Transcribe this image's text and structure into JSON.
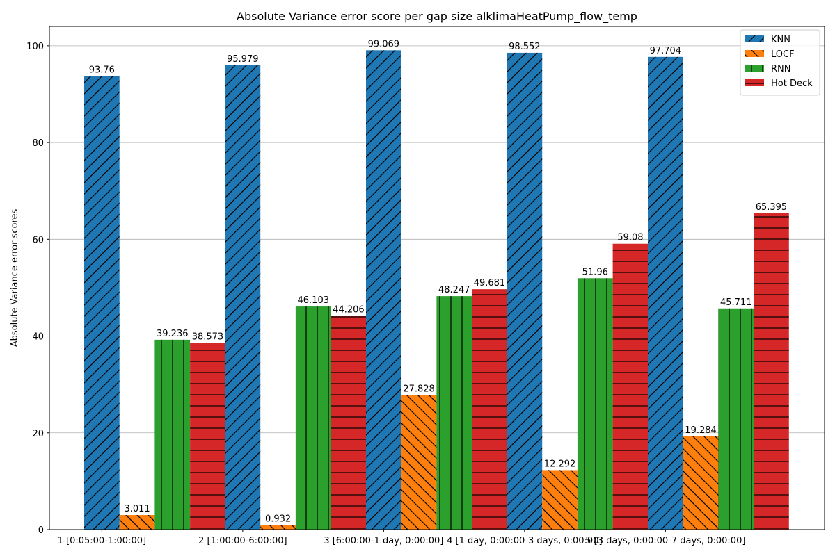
{
  "chart_data": {
    "type": "bar",
    "title": "Absolute Variance error score per gap size alklimaHeatPump_flow_temp",
    "xlabel": "",
    "ylabel": "Absolute Variance error scores",
    "ylim": [
      0,
      104
    ],
    "yticks": [
      0,
      20,
      40,
      60,
      80,
      100
    ],
    "grid": "horizontal",
    "legend_position": "top-right",
    "categories": [
      "1 [0:05:00-1:00:00]",
      "2 [1:00:00-6:00:00]",
      "3 [6:00:00-1 day, 0:00:00]",
      "4 [1 day, 0:00:00-3 days, 0:00:00]",
      "5 [3 days, 0:00:00-7 days, 0:00:00]"
    ],
    "series": [
      {
        "name": "KNN",
        "color": "#1f77b4",
        "hatch": "forward-diagonal",
        "values": [
          93.76,
          95.979,
          99.069,
          98.552,
          97.704
        ]
      },
      {
        "name": "LOCF",
        "color": "#ff7f0e",
        "hatch": "back-diagonal",
        "values": [
          3.011,
          0.932,
          27.828,
          12.292,
          19.284
        ]
      },
      {
        "name": "RNN",
        "color": "#2ca02c",
        "hatch": "vertical",
        "values": [
          39.236,
          46.103,
          48.247,
          51.96,
          45.711
        ]
      },
      {
        "name": "Hot Deck",
        "color": "#d62728",
        "hatch": "horizontal",
        "values": [
          38.573,
          44.206,
          49.681,
          59.08,
          65.395
        ]
      }
    ]
  }
}
